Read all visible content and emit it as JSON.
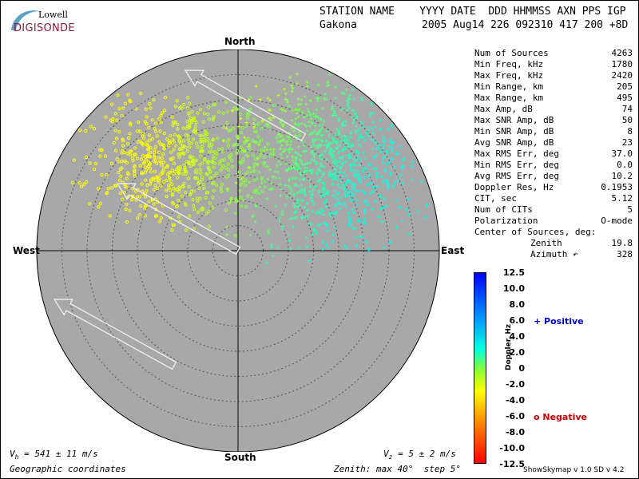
{
  "logo": {
    "top": "Lowell",
    "bottom": "DIGISONDE"
  },
  "header": {
    "line1": "STATION NAME    YYYY DATE  DDD HHMMSS AXN PPS IGP",
    "station": "Gakona",
    "line2": "2005 Aug14 226 092310 417 200 +8D"
  },
  "stats": [
    {
      "label": "Num of Sources",
      "value": "4263"
    },
    {
      "label": "Min Freq, kHz",
      "value": "1780"
    },
    {
      "label": "Max Freq, kHz",
      "value": "2420"
    },
    {
      "label": "Min Range, km",
      "value": "205"
    },
    {
      "label": "Max Range, km",
      "value": "495"
    },
    {
      "label": "Max Amp, dB",
      "value": "74"
    },
    {
      "label": "Max SNR Amp, dB",
      "value": "50"
    },
    {
      "label": "Min SNR Amp, dB",
      "value": "8"
    },
    {
      "label": "Avg SNR Amp, dB",
      "value": "23"
    },
    {
      "label": "Max RMS Err, deg",
      "value": "37.0"
    },
    {
      "label": "Min RMS Err, deg",
      "value": "0.0"
    },
    {
      "label": "Avg RMS Err, deg",
      "value": "10.2"
    },
    {
      "label": "Doppler Res, Hz",
      "value": "0.1953"
    },
    {
      "label": "CIT, sec",
      "value": "5.12"
    },
    {
      "label": "Num of CITs",
      "value": "5"
    },
    {
      "label": "Polarization",
      "value": "O-mode"
    }
  ],
  "center": {
    "title": "Center of Sources, deg:",
    "zenith_label": "Zenith",
    "zenith_value": "19.8",
    "azimuth_label": "Azimuth ↶",
    "azimuth_value": "328"
  },
  "compass": {
    "north": "North",
    "south": "South",
    "east": "East",
    "west": "West"
  },
  "colorbar": {
    "title": "Doppler, Hz",
    "ticks": [
      "12.5",
      "10.0",
      "8.0",
      "6.0",
      "4.0",
      "2.0",
      "0",
      "-2.0",
      "-4.0",
      "-6.0",
      "-8.0",
      "-10.0",
      "-12.5"
    ]
  },
  "legend": {
    "positive": "+ Positive",
    "negative": "o Negative",
    "positive_color": "#0000cc",
    "negative_color": "#cc0000"
  },
  "footer": {
    "vh": "V",
    "vh_sub": "h",
    "vh_val": " = 541 ± 11 m/s",
    "vz": "V",
    "vz_sub": "z",
    "vz_val": " = 5 ± 2 m/s",
    "coords": "Geographic coordinates",
    "zenith": "Zenith: max 40°  step 5°",
    "version": "ShowSkymap v 1.0   SD v 4.2"
  },
  "colors": {
    "disk": "#a8a8a8",
    "accent": "#8b1a3a"
  },
  "chart_data": {
    "type": "scatter",
    "title": "Skymap",
    "x_axis": "West-East",
    "y_axis": "South-North",
    "zenith_max_deg": 40,
    "zenith_step_deg": 5,
    "rings_deg": [
      5,
      10,
      15,
      20,
      25,
      30,
      35
    ],
    "series": [
      {
        "name": "Positive Doppler (+)",
        "marker": "+",
        "clusters": [
          {
            "azimuth_deg": 45,
            "zenith_deg": 22,
            "color_hz": 3
          }
        ]
      },
      {
        "name": "Negative Doppler (o)",
        "marker": "o",
        "clusters": [
          {
            "azimuth_deg": 300,
            "zenith_deg": 26,
            "color_hz": -3
          }
        ]
      }
    ],
    "velocity_arrows_azimuth_deg": [
      315,
      315,
      315
    ]
  }
}
